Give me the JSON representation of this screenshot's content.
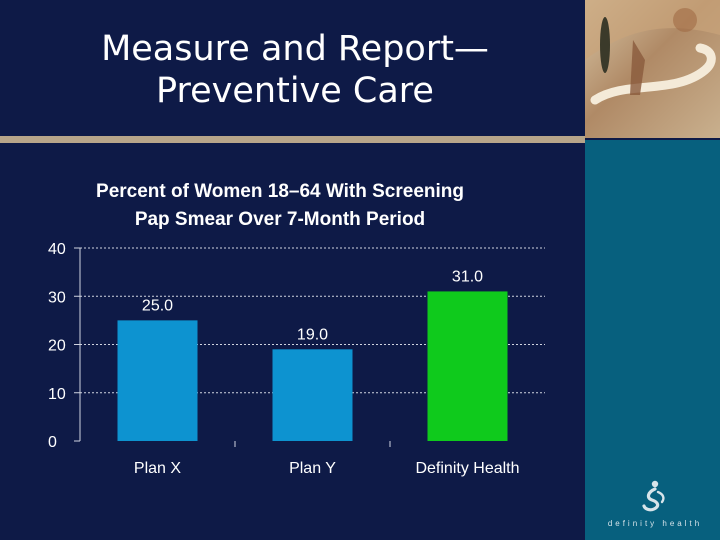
{
  "slide": {
    "title_line1": "Measure and Report—",
    "title_line2": "Preventive Care"
  },
  "brand": {
    "name": "definity health"
  },
  "colors": {
    "background": "#0e1a47",
    "sidebar": "#07607e",
    "bar_blue": "#0d93d0",
    "bar_green": "#0fca1c"
  },
  "chart_data": {
    "type": "bar",
    "title_line1": "Percent of Women 18–64 With Screening",
    "title_line2": "Pap Smear Over 7-Month Period",
    "categories": [
      "Plan X",
      "Plan Y",
      "Definity Health"
    ],
    "values": [
      25.0,
      19.0,
      31.0
    ],
    "value_labels": [
      "25.0",
      "19.0",
      "31.0"
    ],
    "bar_colors": [
      "#0d93d0",
      "#0d93d0",
      "#0fca1c"
    ],
    "ylim": [
      0,
      40
    ],
    "yticks": [
      0,
      10,
      20,
      30,
      40
    ],
    "grid": true,
    "legend": false
  }
}
